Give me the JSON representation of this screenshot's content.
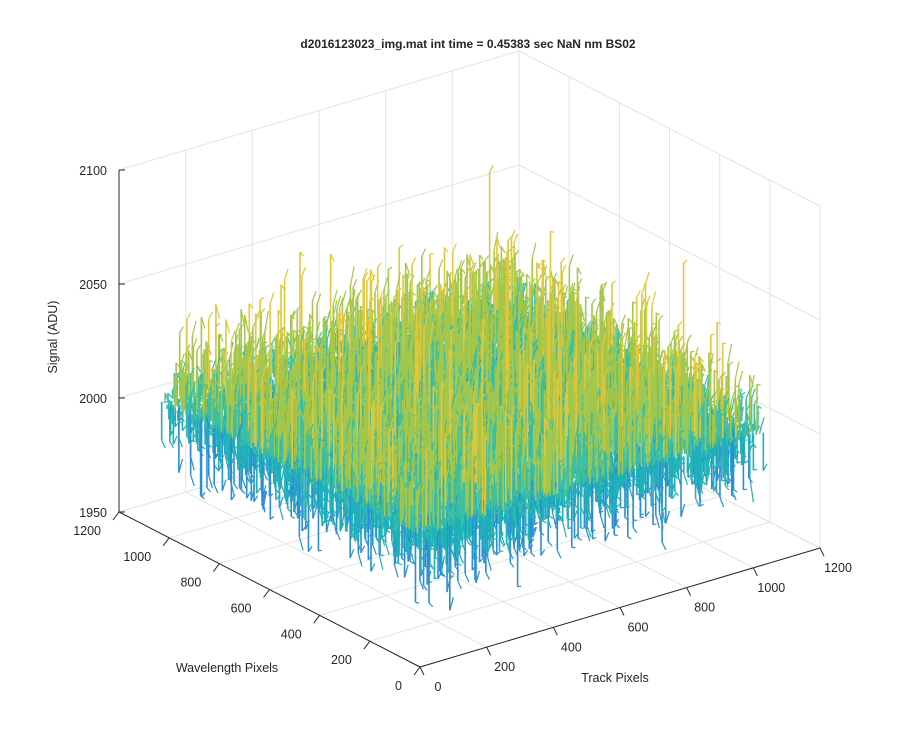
{
  "chart_data": {
    "type": "surface",
    "title": "d2016123023_img.mat int time = 0.45383 sec  NaN nm BS02",
    "xlabel": "Track Pixels",
    "ylabel": "Wavelength Pixels",
    "zlabel": "Signal (ADU)",
    "xlim": [
      0,
      1200
    ],
    "ylim": [
      0,
      1200
    ],
    "zlim": [
      1950,
      2100
    ],
    "x_ticks": [
      "0",
      "200",
      "400",
      "600",
      "800",
      "1000",
      "1200"
    ],
    "y_ticks": [
      "0",
      "200",
      "400",
      "600",
      "800",
      "1000",
      "1200"
    ],
    "z_ticks": [
      "1950",
      "2000",
      "2050",
      "2100"
    ],
    "grid": true,
    "colormap": [
      "#2a8fd6",
      "#1fb1b8",
      "#3fbf9f",
      "#a6c74a",
      "#e3c73a"
    ],
    "surface": {
      "x_range": [
        0,
        1030
      ],
      "y_range": [
        0,
        1030
      ],
      "mean_level": 2008,
      "typical_min": 1968,
      "typical_max": 2058,
      "peak": 2096
    }
  }
}
